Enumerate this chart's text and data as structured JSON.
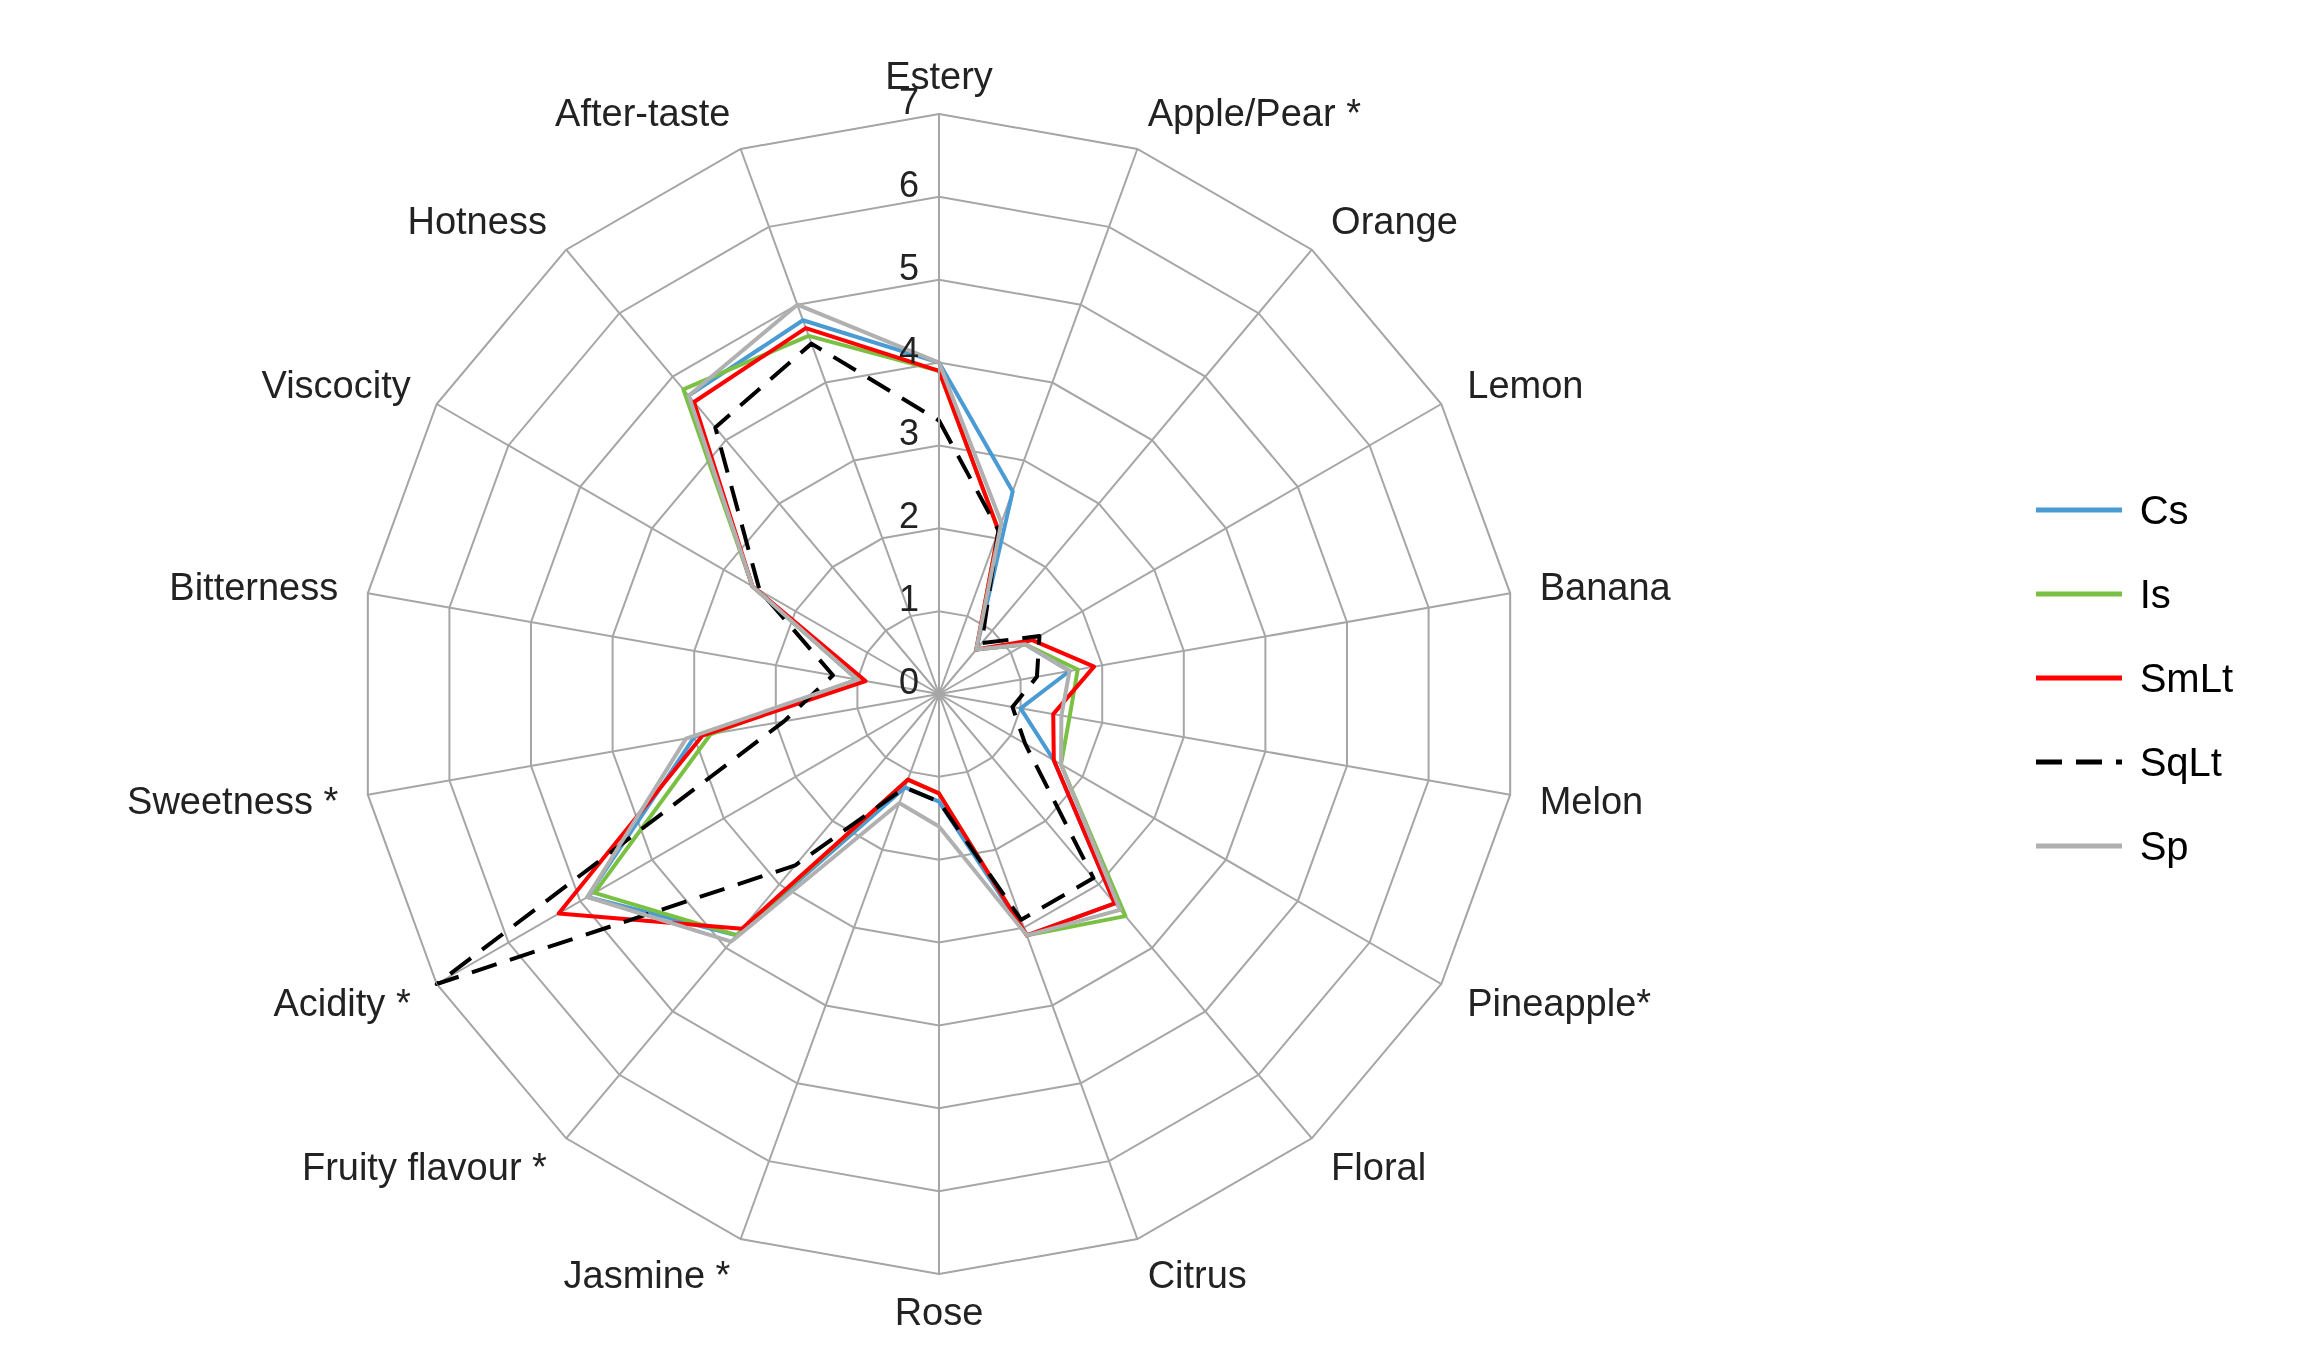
{
  "chart_data": {
    "type": "radar",
    "categories": [
      "Estery",
      "Apple/Pear *",
      "Orange",
      "Lemon",
      "Banana",
      "Melon",
      "Pineapple*",
      "Floral",
      "Citrus",
      "Rose",
      "Jasmine *",
      "Fruity flavour *",
      "Acidity *",
      "Sweetness *",
      "Bitterness",
      "Viscocity",
      "Hotness",
      "After-taste"
    ],
    "series": [
      {
        "name": "Cs",
        "color": "#4a9bd4",
        "values": [
          4.0,
          2.6,
          0.7,
          1.2,
          1.6,
          1.0,
          1.6,
          3.3,
          3.1,
          1.3,
          1.2,
          3.8,
          4.9,
          3.0,
          1.0,
          2.6,
          4.7,
          4.8
        ]
      },
      {
        "name": "Is",
        "color": "#7ac143",
        "values": [
          3.9,
          2.1,
          0.7,
          1.2,
          1.7,
          1.6,
          1.7,
          3.5,
          3.1,
          1.2,
          1.1,
          3.8,
          4.8,
          2.8,
          1.0,
          2.6,
          4.8,
          4.6
        ]
      },
      {
        "name": "SmLt",
        "color": "#ff0000",
        "values": [
          3.9,
          2.1,
          0.7,
          1.3,
          1.9,
          1.4,
          1.6,
          3.3,
          3.1,
          1.2,
          1.1,
          3.7,
          5.3,
          2.9,
          0.9,
          2.6,
          4.6,
          4.7
        ]
      },
      {
        "name": "SqLt",
        "color": "#000000",
        "line_style": "dashed",
        "values": [
          3.3,
          2.1,
          0.8,
          1.4,
          1.2,
          0.9,
          1.2,
          2.9,
          2.9,
          1.3,
          1.2,
          2.7,
          7.0,
          1.9,
          1.3,
          2.5,
          4.2,
          4.5
        ]
      },
      {
        "name": "Sp",
        "color": "#b0b0b0",
        "values": [
          4.0,
          2.2,
          0.7,
          1.2,
          1.6,
          1.5,
          1.7,
          3.4,
          3.1,
          1.6,
          1.4,
          3.9,
          4.9,
          3.1,
          1.0,
          2.6,
          4.7,
          5.0
        ]
      }
    ],
    "ylim": [
      0,
      7
    ],
    "yticks": [
      0,
      1,
      2,
      3,
      4,
      5,
      6,
      7
    ],
    "grid": true,
    "legend": "right",
    "marker": "none",
    "line_style": "solid"
  }
}
